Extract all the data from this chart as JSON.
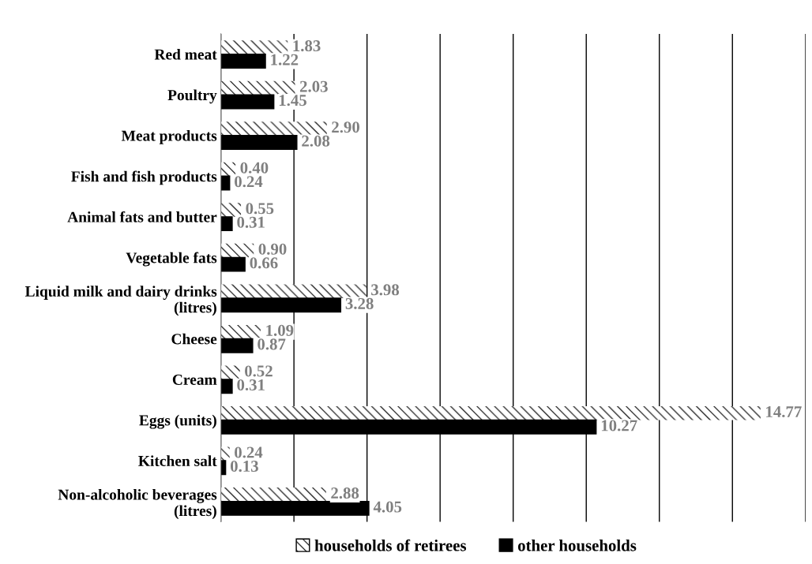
{
  "chart_data": {
    "type": "bar",
    "orientation": "horizontal",
    "categories": [
      "Red meat",
      "Poultry",
      "Meat products",
      "Fish and fish products",
      "Animal fats and butter",
      "Vegetable fats",
      "Liquid milk and dairy drinks (litres)",
      "Cheese",
      "Cream",
      "Eggs (units)",
      "Kitchen salt",
      "Non-alcoholic beverages (litres)"
    ],
    "series": [
      {
        "name": "households of retirees",
        "color": "#ffffff",
        "values": [
          1.83,
          2.03,
          2.9,
          0.4,
          0.55,
          0.9,
          3.98,
          1.09,
          0.52,
          14.77,
          0.24,
          2.88
        ],
        "value_labels": [
          "1.83",
          "2.03",
          "2.90",
          "0.40",
          "0.55",
          "0.90",
          "3.98",
          "1.09",
          "0.52",
          "14.77",
          "0.24",
          "2.88"
        ]
      },
      {
        "name": "other households",
        "color": "#000000",
        "values": [
          1.22,
          1.45,
          2.08,
          0.24,
          0.31,
          0.66,
          3.28,
          0.87,
          0.31,
          10.27,
          0.13,
          4.05
        ],
        "value_labels": [
          "1.22",
          "1.45",
          "2.08",
          "0.24",
          "0.31",
          "0.66",
          "3.28",
          "0.87",
          "0.31",
          "10.27",
          "0.13",
          "4.05"
        ]
      }
    ],
    "xlim": [
      0,
      16
    ],
    "xticks": [
      {
        "value": 0,
        "label": null
      },
      {
        "value": 2,
        "label": null
      },
      {
        "value": 4,
        "label": null
      },
      {
        "value": 6,
        "label": null
      },
      {
        "value": 8,
        "label": null
      },
      {
        "value": 10,
        "label": null
      },
      {
        "value": 12,
        "label": null
      },
      {
        "value": 14,
        "label": null
      },
      {
        "value": 16,
        "label": null
      }
    ],
    "tick_labels": "y",
    "grid": "x",
    "legend": "bottom"
  }
}
